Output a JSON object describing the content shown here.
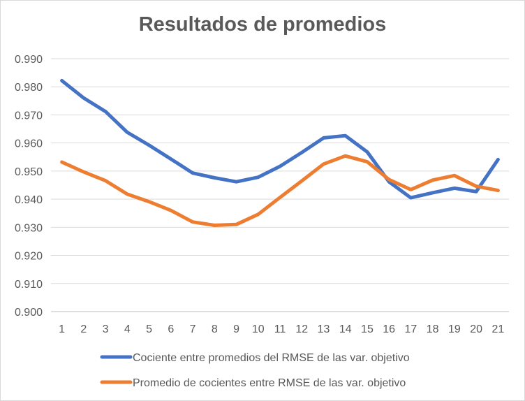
{
  "chart_data": {
    "type": "line",
    "title": "Resultados de promedios",
    "xlabel": "",
    "ylabel": "",
    "x": [
      1,
      2,
      3,
      4,
      5,
      6,
      7,
      8,
      9,
      10,
      11,
      12,
      13,
      14,
      15,
      16,
      17,
      18,
      19,
      20,
      21
    ],
    "ylim": [
      0.9,
      0.99
    ],
    "yticks": [
      "0.900",
      "0.910",
      "0.920",
      "0.930",
      "0.940",
      "0.950",
      "0.960",
      "0.970",
      "0.980",
      "0.990"
    ],
    "grid": true,
    "legend_position": "bottom",
    "series": [
      {
        "name": "Cociente entre promedios del RMSE de las var. objetivo",
        "color": "#4472c4",
        "values": [
          0.9822,
          0.976,
          0.9712,
          0.9638,
          0.9592,
          0.9543,
          0.9493,
          0.9476,
          0.9462,
          0.9478,
          0.9517,
          0.9566,
          0.9618,
          0.9626,
          0.9568,
          0.9462,
          0.9405,
          0.9423,
          0.9439,
          0.9427,
          0.9541
        ]
      },
      {
        "name": "Promedio de cocientes entre RMSE de las var. objetivo",
        "color": "#ed7d31",
        "values": [
          0.9532,
          0.9497,
          0.9466,
          0.9418,
          0.9391,
          0.936,
          0.9319,
          0.9307,
          0.931,
          0.9346,
          0.9406,
          0.9465,
          0.9525,
          0.9554,
          0.9533,
          0.947,
          0.9434,
          0.9468,
          0.9484,
          0.9446,
          0.9431
        ]
      }
    ]
  }
}
